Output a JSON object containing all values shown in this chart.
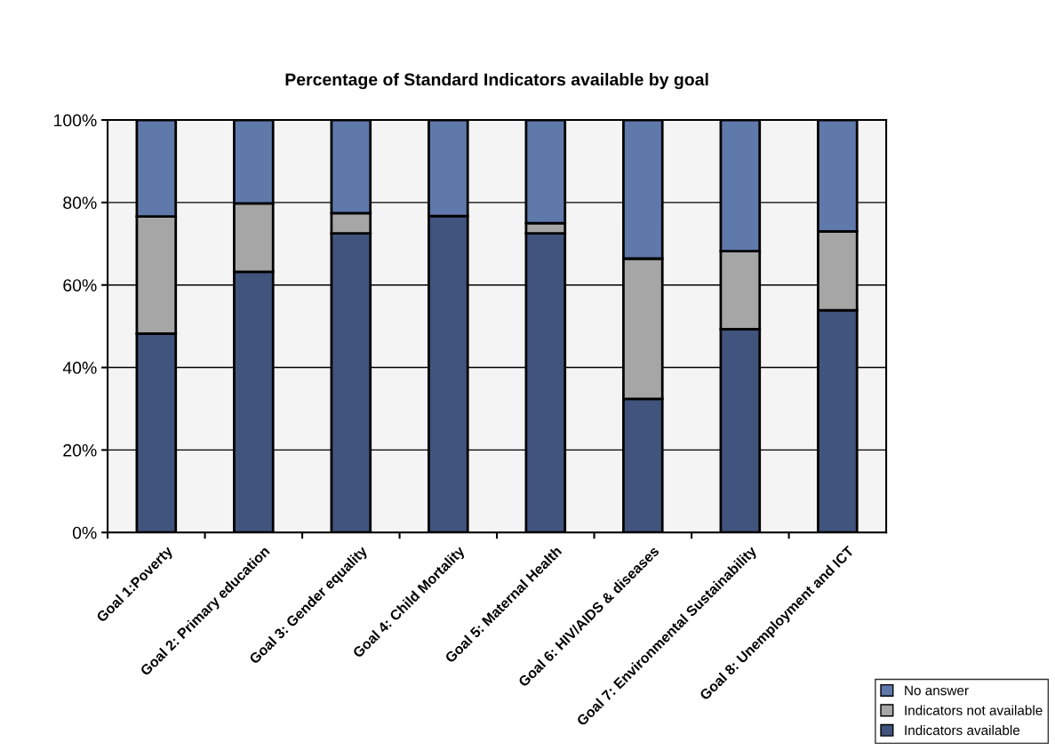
{
  "chart_data": {
    "type": "bar",
    "stacked": true,
    "title": "Percentage of Standard Indicators available by goal",
    "categories": [
      "Goal 1:Poverty",
      "Goal 2: Primary education",
      "Goal 3: Gender equality",
      "Goal 4: Child Mortality",
      "Goal 5: Maternal Health",
      "Goal 6: HIV/AIDS & diseases",
      "Goal 7: Environmental Sustainability",
      "Goal 8: Unemployment and ICT"
    ],
    "series": [
      {
        "name": "Indicators available",
        "color": "#41547d",
        "values": [
          48.2,
          63.2,
          72.5,
          76.7,
          72.5,
          32.4,
          49.3,
          53.9
        ]
      },
      {
        "name": "Indicators not available",
        "color": "#a6a6a6",
        "values": [
          28.4,
          16.6,
          4.9,
          null,
          2.5,
          34.0,
          18.9,
          19.1
        ]
      },
      {
        "name": "No answer",
        "color": "#5f79ab",
        "values": [
          23.4,
          20.2,
          22.6,
          23.3,
          25.0,
          33.6,
          31.8,
          27.0
        ]
      }
    ],
    "ylim": [
      0,
      100
    ],
    "yticks": [
      {
        "value": 0,
        "label": "0%"
      },
      {
        "value": 20,
        "label": "20%"
      },
      {
        "value": 40,
        "label": "40%"
      },
      {
        "value": 60,
        "label": "60%"
      },
      {
        "value": 80,
        "label": "80%"
      },
      {
        "value": 100,
        "label": "100%"
      }
    ],
    "grid": "y",
    "legend": "bottom right"
  }
}
